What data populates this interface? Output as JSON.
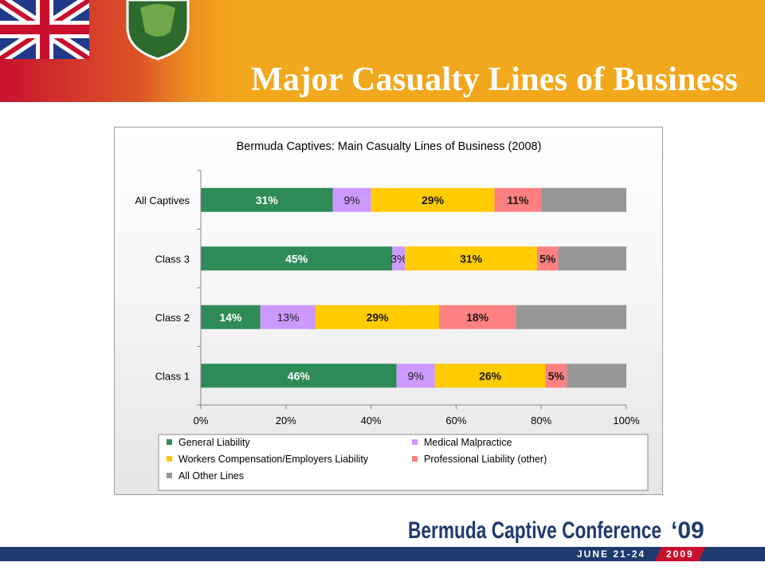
{
  "slide": {
    "title": "Major Casualty Lines of Business"
  },
  "branding": {
    "conference_name": "Bermuda Captive Conference",
    "conference_year": "‘09",
    "dates": "JUNE 21-24",
    "year": "2009",
    "accent_color": "#f2a81d",
    "footer_color": "#1f3a6e"
  },
  "chart_data": {
    "type": "bar",
    "orientation": "horizontal",
    "stacked": true,
    "title": "Bermuda Captives: Main Casualty Lines of Business (2008)",
    "categories": [
      "All Captives",
      "Class 3",
      "Class 2",
      "Class 1"
    ],
    "xlim": [
      0,
      100
    ],
    "x_ticks": [
      "0%",
      "20%",
      "40%",
      "60%",
      "80%",
      "100%"
    ],
    "grid": false,
    "legend_position": "bottom",
    "series": [
      {
        "name": "General Liability",
        "color": "#2e8b57",
        "values": [
          31,
          45,
          14,
          46
        ],
        "labels": [
          "31%",
          "45%",
          "14%",
          "46%"
        ]
      },
      {
        "name": "Medical Malpractice",
        "color": "#cc99ff",
        "values": [
          9,
          3,
          13,
          9
        ],
        "labels": [
          "9%",
          "3%",
          "13%",
          "9%"
        ]
      },
      {
        "name": "Workers Compensation/Employers Liability",
        "color": "#ffcc00",
        "values": [
          29,
          31,
          29,
          26
        ],
        "labels": [
          "29%",
          "31%",
          "29%",
          "26%"
        ]
      },
      {
        "name": "Professional Liability (other)",
        "color": "#ff8080",
        "values": [
          11,
          5,
          18,
          5
        ],
        "labels": [
          "11%",
          "5%",
          "18%",
          "5%"
        ]
      },
      {
        "name": "All Other Lines",
        "color": "#969696",
        "values": [
          20,
          16,
          26,
          14
        ],
        "labels": [
          "",
          "",
          "",
          ""
        ]
      }
    ]
  }
}
